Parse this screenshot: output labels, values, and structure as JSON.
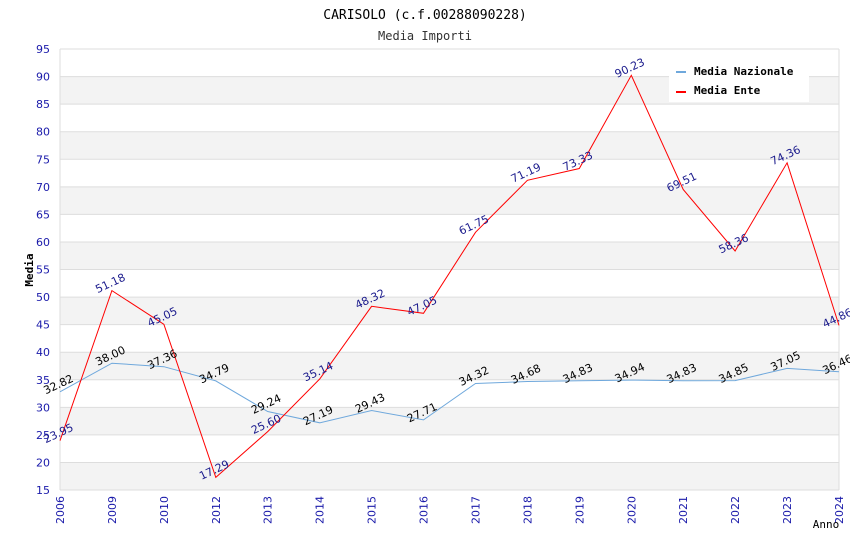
{
  "chart_data": {
    "type": "line",
    "title": "CARISOLO (c.f.00288090228)",
    "subtitle": "Media Importi",
    "xlabel": "Anno",
    "ylabel": "Media",
    "ylim": [
      15,
      95
    ],
    "yticks": [
      15,
      20,
      25,
      30,
      35,
      40,
      45,
      50,
      55,
      60,
      65,
      70,
      75,
      80,
      85,
      90,
      95
    ],
    "grid": "horizontal alternating bands",
    "legend_position": "top-right",
    "categories": [
      "2006",
      "2009",
      "2010",
      "2012",
      "2013",
      "2014",
      "2015",
      "2016",
      "2017",
      "2018",
      "2019",
      "2020",
      "2021",
      "2022",
      "2023",
      "2024"
    ],
    "series": [
      {
        "name": "Media Nazionale",
        "color": "#6fa8dc",
        "label_color": "#000000",
        "values": [
          32.82,
          38.0,
          37.36,
          34.79,
          29.24,
          27.19,
          29.43,
          27.71,
          34.32,
          34.68,
          34.83,
          34.94,
          34.83,
          34.85,
          37.05,
          36.46
        ],
        "labels": [
          "32.82",
          "38.00",
          "37.36",
          "34.79",
          "29.24",
          "27.19",
          "29.43",
          "27.71",
          "34.32",
          "34.68",
          "34.83",
          "34.94",
          "34.83",
          "34.85",
          "37.05",
          "36.46"
        ]
      },
      {
        "name": "Media Ente",
        "color": "#ff0000",
        "label_color": "#1a1a8c",
        "values": [
          23.95,
          51.18,
          45.05,
          17.29,
          25.6,
          35.14,
          48.32,
          47.05,
          61.75,
          71.19,
          73.33,
          90.23,
          69.51,
          58.36,
          74.36,
          44.86
        ],
        "labels": [
          "23.95",
          "51.18",
          "45.05",
          "17.29",
          "25.60",
          "35.14",
          "48.32",
          "47.05",
          "61.75",
          "71.19",
          "73.33",
          "90.23",
          "69.51",
          "58.36",
          "74.36",
          "44.86"
        ]
      }
    ]
  }
}
